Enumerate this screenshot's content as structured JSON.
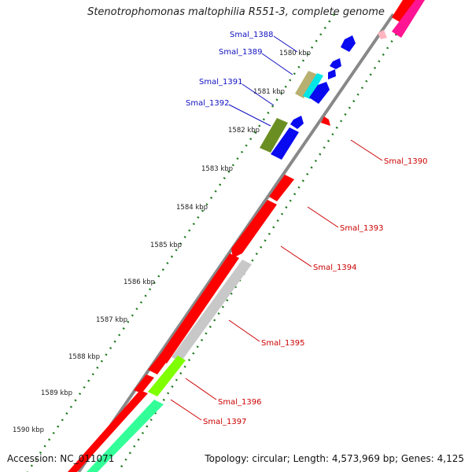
{
  "title": "Stenotrophomonas maltophilia R551-3, complete genome",
  "accession": "Accession: NC_011071",
  "summary": "Topology: circular; Length: 4,573,969 bp; Genes: 4,125",
  "ticks": [
    "1580 kbp",
    "1581 kbp",
    "1582 kbp",
    "1583 kbp",
    "1584 kbp",
    "1585 kbp",
    "1586 kbp",
    "1587 kbp",
    "1588 kbp",
    "1589 kbp",
    "1590 kbp"
  ],
  "genes_forward": [
    "Smal_1388",
    "Smal_1389",
    "Smal_1391",
    "Smal_1392"
  ],
  "genes_reverse": [
    "Smal_1390",
    "Smal_1393",
    "Smal_1394",
    "Smal_1395",
    "Smal_1396",
    "Smal_1397"
  ],
  "colors": {
    "forward_label": "#1010c0",
    "reverse_label": "#cc0000",
    "backbone": "#888888",
    "tick_dots": "#1f7a1f",
    "cds_blue": "#0a0af0",
    "cds_red": "#ff0000",
    "cds_gray": "#c8c8c8",
    "cds_olive": "#6b8e23",
    "cds_green": "#7fff00",
    "cds_mint": "#33ff99"
  }
}
